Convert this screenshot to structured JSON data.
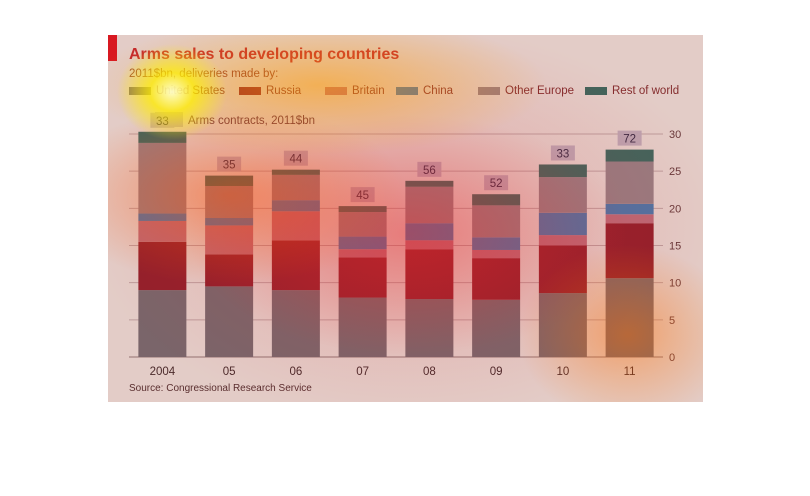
{
  "chart_data": {
    "type": "bar",
    "stacked": true,
    "title": "Arms sales to developing countries",
    "subtitle": "2011$bn, deliveries made by:",
    "categories": [
      "2004",
      "05",
      "06",
      "07",
      "08",
      "09",
      "10",
      "11"
    ],
    "series": [
      {
        "name": "United States",
        "color": "#6e6c70",
        "values": [
          9.0,
          9.5,
          9.0,
          8.0,
          7.8,
          7.7,
          8.6,
          10.6
        ]
      },
      {
        "name": "Russia",
        "color": "#8a1f2a",
        "values": [
          6.5,
          4.3,
          6.7,
          5.4,
          6.7,
          5.6,
          6.4,
          7.4
        ]
      },
      {
        "name": "Britain",
        "color": "#b76f7c",
        "values": [
          2.8,
          3.9,
          3.9,
          1.1,
          1.2,
          1.1,
          1.4,
          1.2
        ]
      },
      {
        "name": "China",
        "color": "#3d7cb0",
        "values": [
          1.0,
          1.0,
          1.5,
          1.7,
          2.3,
          1.7,
          3.0,
          1.4
        ]
      },
      {
        "name": "Other Europe",
        "color": "#8f8589",
        "values": [
          9.5,
          4.3,
          3.4,
          3.3,
          4.9,
          4.3,
          4.8,
          5.7
        ]
      },
      {
        "name": "Rest of world",
        "color": "#2f6b60",
        "values": [
          1.5,
          1.4,
          0.7,
          0.8,
          0.8,
          1.5,
          1.7,
          1.6
        ]
      }
    ],
    "contracts_label": "Arms contracts, 2011$bn",
    "contracts": [
      33,
      35,
      44,
      45,
      56,
      52,
      33,
      72
    ],
    "ylim": [
      0,
      30
    ],
    "yticks": [
      0,
      5,
      10,
      15,
      20,
      25,
      30
    ],
    "yaxis_side": "right",
    "grid": true,
    "legend_position": "top",
    "source": "Source: Congressional Research Service"
  }
}
